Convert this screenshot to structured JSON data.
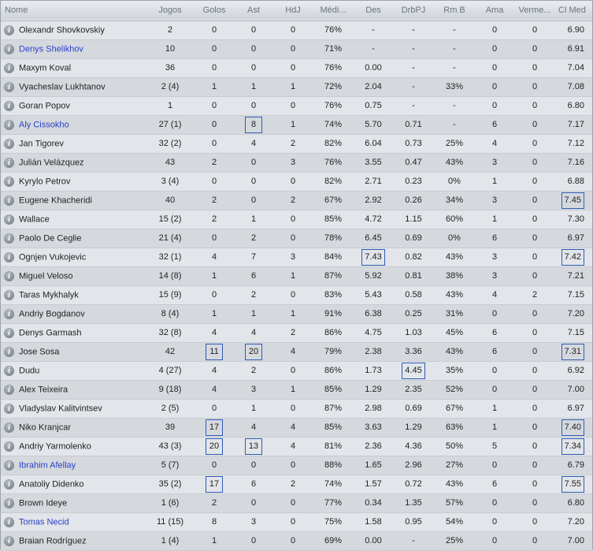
{
  "columns": [
    "Nome",
    "Jogos",
    "Golos",
    "Ast",
    "HdJ",
    "Médi...",
    "Des",
    "DrbPJ",
    "Rm B",
    "Ama",
    "Verme...",
    "Cl Med"
  ],
  "rows": [
    {
      "name": "Olexandr Shovkovskiy",
      "link": false,
      "jogos": "2",
      "golos": "0",
      "ast": "0",
      "hdj": "0",
      "media": "76%",
      "des": "-",
      "drbpj": "-",
      "rmb": "-",
      "ama": "0",
      "verm": "0",
      "clmed": "6.90",
      "hl": []
    },
    {
      "name": "Denys Shelikhov",
      "link": true,
      "jogos": "10",
      "golos": "0",
      "ast": "0",
      "hdj": "0",
      "media": "71%",
      "des": "-",
      "drbpj": "-",
      "rmb": "-",
      "ama": "0",
      "verm": "0",
      "clmed": "6.91",
      "hl": []
    },
    {
      "name": "Maxym Koval",
      "link": false,
      "jogos": "36",
      "golos": "0",
      "ast": "0",
      "hdj": "0",
      "media": "76%",
      "des": "0.00",
      "drbpj": "-",
      "rmb": "-",
      "ama": "0",
      "verm": "0",
      "clmed": "7.04",
      "hl": []
    },
    {
      "name": "Vyacheslav Lukhtanov",
      "link": false,
      "jogos": "2 (4)",
      "golos": "1",
      "ast": "1",
      "hdj": "1",
      "media": "72%",
      "des": "2.04",
      "drbpj": "-",
      "rmb": "33%",
      "ama": "0",
      "verm": "0",
      "clmed": "7.08",
      "hl": []
    },
    {
      "name": "Goran Popov",
      "link": false,
      "jogos": "1",
      "golos": "0",
      "ast": "0",
      "hdj": "0",
      "media": "76%",
      "des": "0.75",
      "drbpj": "-",
      "rmb": "-",
      "ama": "0",
      "verm": "0",
      "clmed": "6.80",
      "hl": []
    },
    {
      "name": "Aly Cissokho",
      "link": true,
      "jogos": "27 (1)",
      "golos": "0",
      "ast": "8",
      "hdj": "1",
      "media": "74%",
      "des": "5.70",
      "drbpj": "0.71",
      "rmb": "-",
      "ama": "6",
      "verm": "0",
      "clmed": "7.17",
      "hl": [
        "ast"
      ]
    },
    {
      "name": "Jan Tigorev",
      "link": false,
      "jogos": "32 (2)",
      "golos": "0",
      "ast": "4",
      "hdj": "2",
      "media": "82%",
      "des": "6.04",
      "drbpj": "0.73",
      "rmb": "25%",
      "ama": "4",
      "verm": "0",
      "clmed": "7.12",
      "hl": []
    },
    {
      "name": "Julián Velázquez",
      "link": false,
      "jogos": "43",
      "golos": "2",
      "ast": "0",
      "hdj": "3",
      "media": "76%",
      "des": "3.55",
      "drbpj": "0.47",
      "rmb": "43%",
      "ama": "3",
      "verm": "0",
      "clmed": "7.16",
      "hl": []
    },
    {
      "name": "Kyrylo Petrov",
      "link": false,
      "jogos": "3 (4)",
      "golos": "0",
      "ast": "0",
      "hdj": "0",
      "media": "82%",
      "des": "2.71",
      "drbpj": "0.23",
      "rmb": "0%",
      "ama": "1",
      "verm": "0",
      "clmed": "6.88",
      "hl": []
    },
    {
      "name": "Eugene Khacheridi",
      "link": false,
      "jogos": "40",
      "golos": "2",
      "ast": "0",
      "hdj": "2",
      "media": "67%",
      "des": "2.92",
      "drbpj": "0.26",
      "rmb": "34%",
      "ama": "3",
      "verm": "0",
      "clmed": "7.45",
      "hl": [
        "clmed"
      ]
    },
    {
      "name": "Wallace",
      "link": false,
      "jogos": "15 (2)",
      "golos": "2",
      "ast": "1",
      "hdj": "0",
      "media": "85%",
      "des": "4.72",
      "drbpj": "1.15",
      "rmb": "60%",
      "ama": "1",
      "verm": "0",
      "clmed": "7.30",
      "hl": []
    },
    {
      "name": "Paolo De Ceglie",
      "link": false,
      "jogos": "21 (4)",
      "golos": "0",
      "ast": "2",
      "hdj": "0",
      "media": "78%",
      "des": "6.45",
      "drbpj": "0.69",
      "rmb": "0%",
      "ama": "6",
      "verm": "0",
      "clmed": "6.97",
      "hl": []
    },
    {
      "name": "Ognjen Vukojevic",
      "link": false,
      "jogos": "32 (1)",
      "golos": "4",
      "ast": "7",
      "hdj": "3",
      "media": "84%",
      "des": "7.43",
      "drbpj": "0.82",
      "rmb": "43%",
      "ama": "3",
      "verm": "0",
      "clmed": "7.42",
      "hl": [
        "des",
        "clmed"
      ]
    },
    {
      "name": "Miguel Veloso",
      "link": false,
      "jogos": "14 (8)",
      "golos": "1",
      "ast": "6",
      "hdj": "1",
      "media": "87%",
      "des": "5.92",
      "drbpj": "0.81",
      "rmb": "38%",
      "ama": "3",
      "verm": "0",
      "clmed": "7.21",
      "hl": []
    },
    {
      "name": "Taras Mykhalyk",
      "link": false,
      "jogos": "15 (9)",
      "golos": "0",
      "ast": "2",
      "hdj": "0",
      "media": "83%",
      "des": "5.43",
      "drbpj": "0.58",
      "rmb": "43%",
      "ama": "4",
      "verm": "2",
      "clmed": "7.15",
      "hl": []
    },
    {
      "name": "Andriy Bogdanov",
      "link": false,
      "jogos": "8 (4)",
      "golos": "1",
      "ast": "1",
      "hdj": "1",
      "media": "91%",
      "des": "6.38",
      "drbpj": "0.25",
      "rmb": "31%",
      "ama": "0",
      "verm": "0",
      "clmed": "7.20",
      "hl": []
    },
    {
      "name": "Denys Garmash",
      "link": false,
      "jogos": "32 (8)",
      "golos": "4",
      "ast": "4",
      "hdj": "2",
      "media": "86%",
      "des": "4.75",
      "drbpj": "1.03",
      "rmb": "45%",
      "ama": "6",
      "verm": "0",
      "clmed": "7.15",
      "hl": []
    },
    {
      "name": "Jose Sosa",
      "link": false,
      "jogos": "42",
      "golos": "11",
      "ast": "20",
      "hdj": "4",
      "media": "79%",
      "des": "2.38",
      "drbpj": "3.36",
      "rmb": "43%",
      "ama": "6",
      "verm": "0",
      "clmed": "7.31",
      "hl": [
        "golos",
        "ast",
        "clmed"
      ]
    },
    {
      "name": "Dudu",
      "link": false,
      "jogos": "4 (27)",
      "golos": "4",
      "ast": "2",
      "hdj": "0",
      "media": "86%",
      "des": "1.73",
      "drbpj": "4.45",
      "rmb": "35%",
      "ama": "0",
      "verm": "0",
      "clmed": "6.92",
      "hl": [
        "drbpj"
      ]
    },
    {
      "name": "Alex Teixeira",
      "link": false,
      "jogos": "9 (18)",
      "golos": "4",
      "ast": "3",
      "hdj": "1",
      "media": "85%",
      "des": "1.29",
      "drbpj": "2.35",
      "rmb": "52%",
      "ama": "0",
      "verm": "0",
      "clmed": "7.00",
      "hl": []
    },
    {
      "name": "Vladyslav Kalitvintsev",
      "link": false,
      "jogos": "2 (5)",
      "golos": "0",
      "ast": "1",
      "hdj": "0",
      "media": "87%",
      "des": "2.98",
      "drbpj": "0.69",
      "rmb": "67%",
      "ama": "1",
      "verm": "0",
      "clmed": "6.97",
      "hl": []
    },
    {
      "name": "Niko Kranjcar",
      "link": false,
      "jogos": "39",
      "golos": "17",
      "ast": "4",
      "hdj": "4",
      "media": "85%",
      "des": "3.63",
      "drbpj": "1.29",
      "rmb": "63%",
      "ama": "1",
      "verm": "0",
      "clmed": "7.40",
      "hl": [
        "golos",
        "clmed"
      ]
    },
    {
      "name": "Andriy Yarmolenko",
      "link": false,
      "jogos": "43 (3)",
      "golos": "20",
      "ast": "13",
      "hdj": "4",
      "media": "81%",
      "des": "2.36",
      "drbpj": "4.36",
      "rmb": "50%",
      "ama": "5",
      "verm": "0",
      "clmed": "7.34",
      "hl": [
        "golos",
        "ast",
        "clmed"
      ]
    },
    {
      "name": "Ibrahim Afellay",
      "link": true,
      "jogos": "5 (7)",
      "golos": "0",
      "ast": "0",
      "hdj": "0",
      "media": "88%",
      "des": "1.65",
      "drbpj": "2.96",
      "rmb": "27%",
      "ama": "0",
      "verm": "0",
      "clmed": "6.79",
      "hl": []
    },
    {
      "name": "Anatoliy Didenko",
      "link": false,
      "jogos": "35 (2)",
      "golos": "17",
      "ast": "6",
      "hdj": "2",
      "media": "74%",
      "des": "1.57",
      "drbpj": "0.72",
      "rmb": "43%",
      "ama": "6",
      "verm": "0",
      "clmed": "7.55",
      "hl": [
        "golos",
        "clmed"
      ]
    },
    {
      "name": "Brown Ideye",
      "link": false,
      "jogos": "1 (6)",
      "golos": "2",
      "ast": "0",
      "hdj": "0",
      "media": "77%",
      "des": "0.34",
      "drbpj": "1.35",
      "rmb": "57%",
      "ama": "0",
      "verm": "0",
      "clmed": "6.80",
      "hl": []
    },
    {
      "name": "Tomas Necid",
      "link": true,
      "jogos": "11 (15)",
      "golos": "8",
      "ast": "3",
      "hdj": "0",
      "media": "75%",
      "des": "1.58",
      "drbpj": "0.95",
      "rmb": "54%",
      "ama": "0",
      "verm": "0",
      "clmed": "7.20",
      "hl": []
    },
    {
      "name": "Braian Rodríguez",
      "link": false,
      "jogos": "1 (4)",
      "golos": "1",
      "ast": "0",
      "hdj": "0",
      "media": "69%",
      "des": "0.00",
      "drbpj": "-",
      "rmb": "25%",
      "ama": "0",
      "verm": "0",
      "clmed": "7.00",
      "hl": []
    }
  ],
  "colors": {
    "link": "#2a3ec7",
    "highlight_border": "#2f5bb7"
  },
  "icons": {
    "row_info": "info-icon"
  }
}
